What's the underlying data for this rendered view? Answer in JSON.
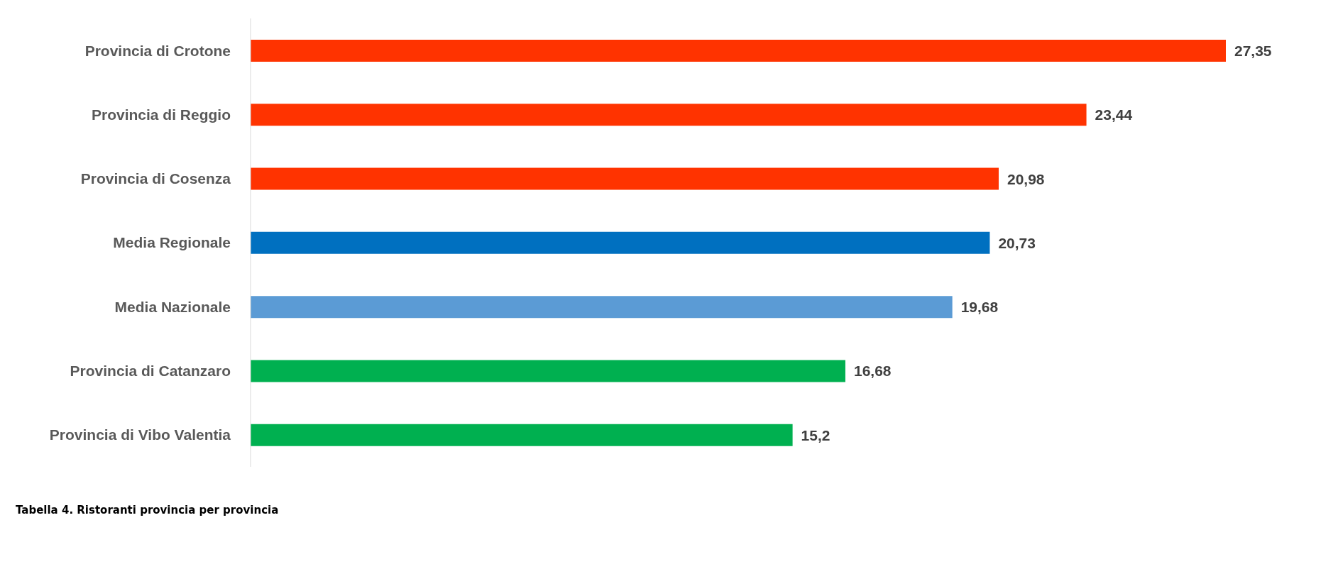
{
  "chart_data": {
    "type": "bar",
    "orientation": "horizontal",
    "categories": [
      "Provincia di Crotone",
      "Provincia di Reggio",
      "Provincia di Cosenza",
      "Media Regionale",
      "Media Nazionale",
      "Provincia di Catanzaro",
      "Provincia di Vibo Valentia"
    ],
    "values": [
      27.35,
      23.44,
      20.98,
      20.73,
      19.68,
      16.68,
      15.2
    ],
    "colors": [
      "#ff3300",
      "#ff3300",
      "#ff3300",
      "#0070c0",
      "#5b9bd5",
      "#00b050",
      "#00b050"
    ],
    "value_labels": [
      "27,35",
      "23,44",
      "20,98",
      "20,73",
      "19,68",
      "16,68",
      "15,2"
    ],
    "annotations": [
      "Tabella 4. Ristoranti provincia per provincia"
    ]
  }
}
